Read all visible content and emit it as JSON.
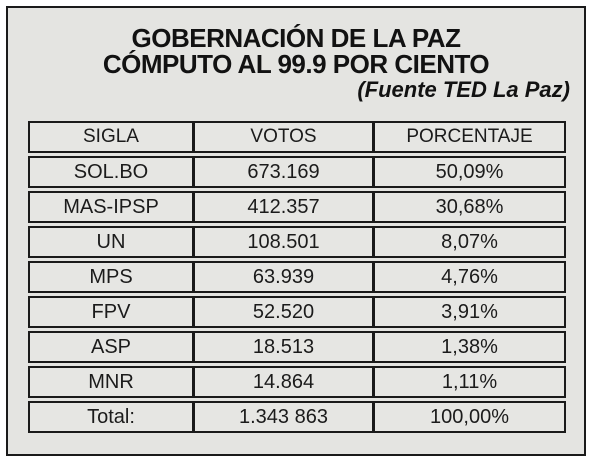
{
  "header": {
    "title_line1": "GOBERNACIÓN DE LA PAZ",
    "title_line2": "CÓMPUTO AL 99.9 POR CIENTO",
    "source": "(Fuente TED La Paz)"
  },
  "table": {
    "columns": [
      "SIGLA",
      "VOTOS",
      "PORCENTAJE"
    ],
    "rows": [
      {
        "sigla": "SOL.BO",
        "votos": "673.169",
        "porcentaje": "50,09%"
      },
      {
        "sigla": "MAS-IPSP",
        "votos": "412.357",
        "porcentaje": "30,68%"
      },
      {
        "sigla": "UN",
        "votos": "108.501",
        "porcentaje": "8,07%"
      },
      {
        "sigla": "MPS",
        "votos": "63.939",
        "porcentaje": "4,76%"
      },
      {
        "sigla": "FPV",
        "votos": "52.520",
        "porcentaje": "3,91%"
      },
      {
        "sigla": "ASP",
        "votos": "18.513",
        "porcentaje": "1,38%"
      },
      {
        "sigla": "MNR",
        "votos": "14.864",
        "porcentaje": "1,11%"
      },
      {
        "sigla": "Total:",
        "votos": "1.343 863",
        "porcentaje": "100,00%"
      }
    ]
  },
  "colors": {
    "frame_background": "#e4e4e1",
    "border": "#1a1a1a",
    "text": "#121212",
    "outer_background": "#ffffff"
  },
  "chart_data": {
    "type": "table",
    "title": "GOBERNACIÓN DE LA PAZ — CÓMPUTO AL 99.9 POR CIENTO",
    "source": "(Fuente TED La Paz)",
    "columns": [
      "SIGLA",
      "VOTOS",
      "PORCENTAJE"
    ],
    "categories": [
      "SOL.BO",
      "MAS-IPSP",
      "UN",
      "MPS",
      "FPV",
      "ASP",
      "MNR"
    ],
    "series": [
      {
        "name": "VOTOS",
        "values": [
          673169,
          412357,
          108501,
          63939,
          52520,
          18513,
          14864
        ]
      },
      {
        "name": "PORCENTAJE",
        "values": [
          50.09,
          30.68,
          8.07,
          4.76,
          3.91,
          1.38,
          1.11
        ]
      }
    ],
    "total": {
      "label": "Total:",
      "votos": 1343863,
      "porcentaje": 100.0
    }
  }
}
